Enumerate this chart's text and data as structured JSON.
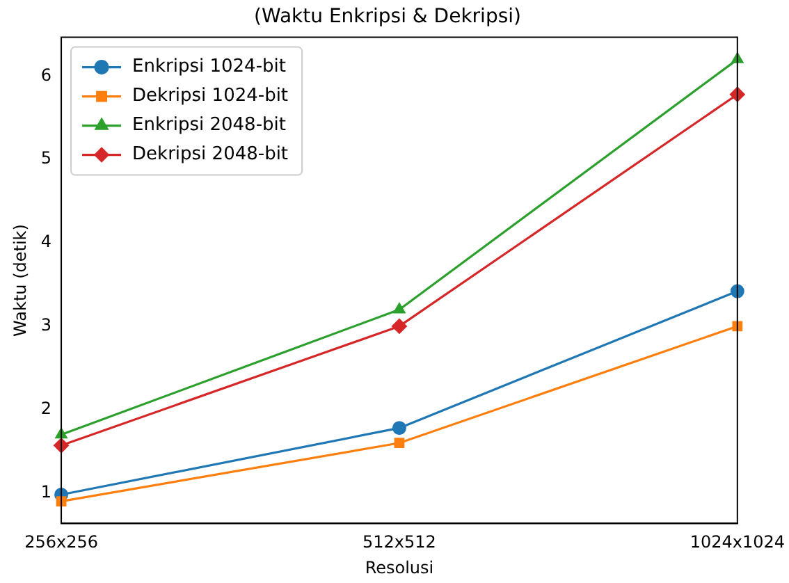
{
  "chart_data": {
    "type": "line",
    "title": "(Waktu Enkripsi & Dekripsi)",
    "xlabel": "Resolusi",
    "ylabel": "Waktu (detik)",
    "categories": [
      "256x256",
      "512x512",
      "1024x1024"
    ],
    "series": [
      {
        "name": "Enkripsi 1024-bit",
        "color": "#1f77b4",
        "marker": "circle",
        "values": [
          0.98,
          1.78,
          3.42
        ]
      },
      {
        "name": "Dekripsi 1024-bit",
        "color": "#ff7f0e",
        "marker": "square",
        "values": [
          0.9,
          1.6,
          3.0
        ]
      },
      {
        "name": "Enkripsi 2048-bit",
        "color": "#2ca02c",
        "marker": "triangle",
        "values": [
          1.7,
          3.2,
          6.2
        ]
      },
      {
        "name": "Dekripsi 2048-bit",
        "color": "#d62728",
        "marker": "diamond",
        "values": [
          1.57,
          3.0,
          5.78
        ]
      }
    ],
    "ylim": [
      0.635,
      6.465
    ],
    "yticks": [
      1,
      2,
      3,
      4,
      5,
      6
    ],
    "grid": false,
    "legend": "top left",
    "line_style": "solid"
  }
}
